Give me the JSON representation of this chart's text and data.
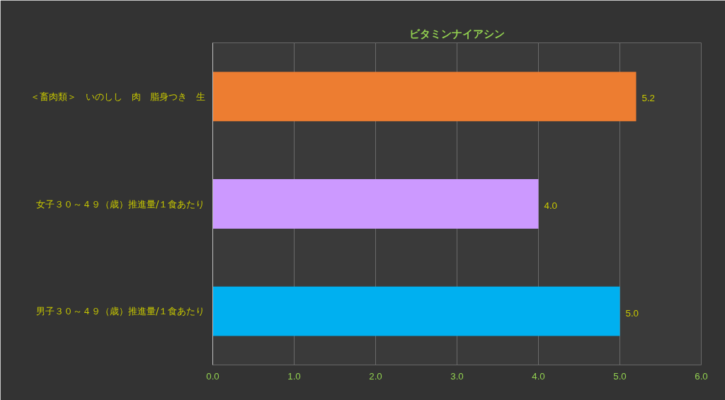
{
  "chart_data": {
    "type": "bar",
    "orientation": "horizontal",
    "title": "ビタミンナイアシン",
    "categories": [
      "＜畜肉類＞　いのしし　肉　脂身つき　生",
      "女子３０～４９（歳）推進量/１食あたり",
      "男子３０～４９（歳）推進量/１食あたり"
    ],
    "values": [
      5.2,
      4.0,
      5.0
    ],
    "colors": [
      "#ed7d31",
      "#cc99ff",
      "#00b0f0"
    ],
    "value_labels": [
      "5.2",
      "4.0",
      "5.0"
    ],
    "xlim": [
      0,
      6
    ],
    "xticks": [
      {
        "value": 0,
        "label": "0.0"
      },
      {
        "value": 1,
        "label": "1.0"
      },
      {
        "value": 2,
        "label": "2.0"
      },
      {
        "value": 3,
        "label": "3.0"
      },
      {
        "value": 4,
        "label": "4.0"
      },
      {
        "value": 5,
        "label": "5.0"
      },
      {
        "value": 6,
        "label": "6.0"
      }
    ],
    "grid": "x"
  }
}
